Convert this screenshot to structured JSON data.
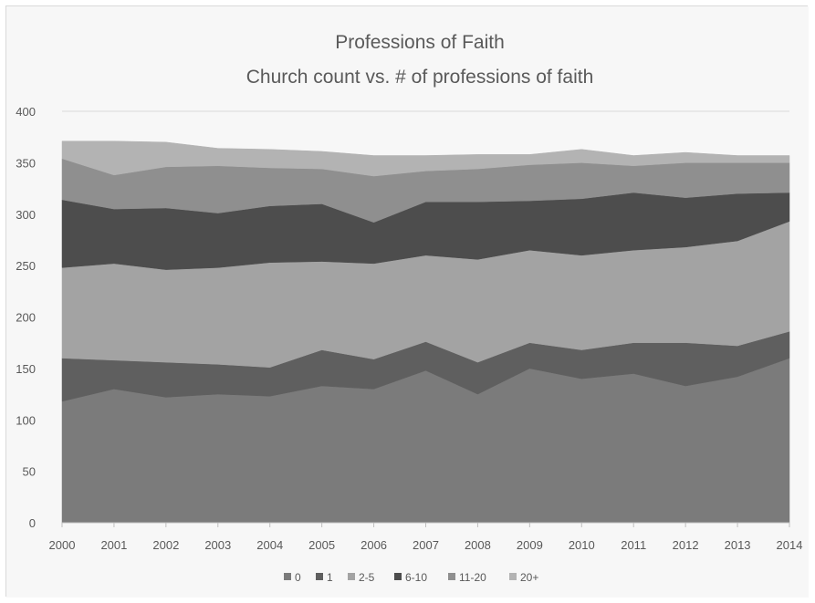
{
  "chart_data": {
    "type": "area",
    "stacked": true,
    "title": "Professions of Faith",
    "subtitle": "Church count vs. # of professions of faith",
    "xlabel": "",
    "ylabel": "",
    "categories": [
      "2000",
      "2001",
      "2002",
      "2003",
      "2004",
      "2005",
      "2006",
      "2007",
      "2008",
      "2009",
      "2010",
      "2011",
      "2012",
      "2013",
      "2014"
    ],
    "y_ticks": [
      "0",
      "50",
      "100",
      "150",
      "200",
      "250",
      "300",
      "350",
      "400"
    ],
    "ylim": [
      0,
      400
    ],
    "grid": true,
    "legend_position": "bottom",
    "series": [
      {
        "name": "0",
        "color": "#7b7b7b",
        "values": [
          118,
          130,
          122,
          125,
          123,
          133,
          130,
          148,
          125,
          150,
          140,
          145,
          133,
          142,
          160
        ]
      },
      {
        "name": "1",
        "color": "#5f5f5f",
        "values": [
          42,
          28,
          34,
          29,
          28,
          35,
          29,
          28,
          31,
          25,
          28,
          30,
          42,
          30,
          26
        ]
      },
      {
        "name": "2-5",
        "color": "#a3a3a3",
        "values": [
          88,
          94,
          90,
          94,
          102,
          86,
          93,
          84,
          100,
          90,
          92,
          90,
          93,
          102,
          107
        ]
      },
      {
        "name": "6-10",
        "color": "#4d4d4d",
        "values": [
          66,
          53,
          60,
          53,
          55,
          56,
          40,
          52,
          56,
          48,
          55,
          56,
          48,
          46,
          28
        ]
      },
      {
        "name": "11-20",
        "color": "#8f8f8f",
        "values": [
          40,
          33,
          40,
          46,
          37,
          34,
          45,
          30,
          32,
          35,
          35,
          26,
          34,
          30,
          29
        ]
      },
      {
        "name": "20+",
        "color": "#b3b3b3",
        "values": [
          17,
          33,
          24,
          17,
          18,
          17,
          20,
          15,
          14,
          10,
          13,
          10,
          10,
          7,
          7
        ]
      }
    ]
  }
}
